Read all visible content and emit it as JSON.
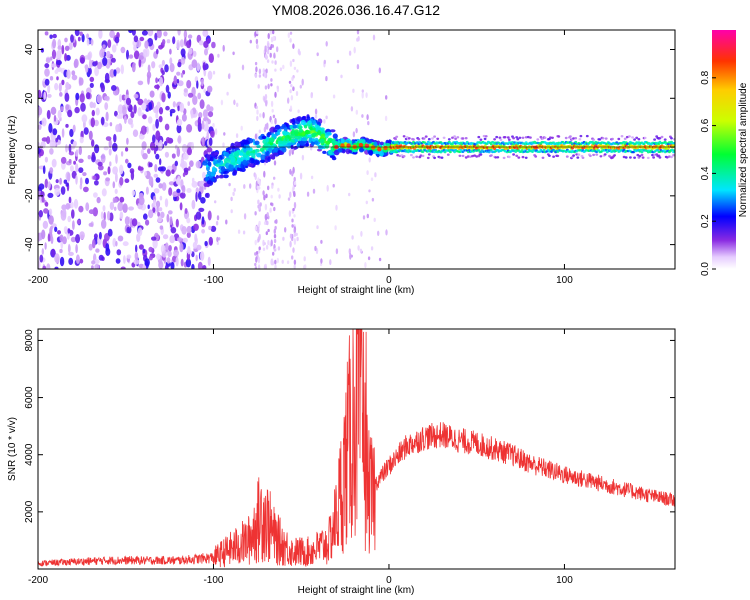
{
  "title": "YM08.2026.036.16.47.G12",
  "chart_data": [
    {
      "type": "heatmap",
      "title": "YM08.2026.036.16.47.G12",
      "xlabel": "Height of straight line (km)",
      "ylabel": "Frequency (Hz)",
      "xlim": [
        -200,
        163
      ],
      "ylim": [
        -50,
        48
      ],
      "x_ticks": [
        -200,
        -100,
        0,
        100
      ],
      "x_tick_labels": [
        "-200",
        "-100",
        "0",
        "100"
      ],
      "y_ticks": [
        -40,
        -20,
        0,
        20,
        40
      ],
      "y_tick_labels": [
        "-40",
        "-20",
        "0",
        "20",
        "40"
      ],
      "ridge": {
        "x": [
          -105,
          -95,
          -85,
          -75,
          -65,
          -55,
          -45,
          -40,
          -35,
          -30,
          -25,
          -20,
          -15,
          -10,
          -5,
          0,
          5,
          163
        ],
        "freq": [
          -10,
          -7,
          -4,
          -1,
          2,
          5,
          7,
          5,
          2,
          0,
          1,
          0,
          1,
          0,
          -1,
          0,
          0,
          0
        ]
      },
      "colorbar": {
        "label": "Normalized spectral amplitude",
        "range": [
          0,
          1
        ],
        "ticks": [
          0.0,
          0.2,
          0.4,
          0.6,
          0.8
        ],
        "tick_labels": [
          "0.0",
          "0.2",
          "0.4",
          "0.6",
          "0.8"
        ]
      }
    },
    {
      "type": "line",
      "xlabel": "Height of straight line (km)",
      "ylabel": "SNR (10 * v/v)",
      "xlim": [
        -200,
        163
      ],
      "ylim": [
        0,
        8400
      ],
      "x_ticks": [
        -200,
        -100,
        0,
        100
      ],
      "x_tick_labels": [
        "-200",
        "-100",
        "0",
        "100"
      ],
      "y_ticks": [
        2000,
        4000,
        6000,
        8000
      ],
      "y_tick_labels": [
        "2000",
        "4000",
        "6000",
        "8000"
      ],
      "series": [
        {
          "name": "SNR",
          "color": "#ee3333",
          "x": [
            -200,
            -160,
            -120,
            -100,
            -90,
            -80,
            -72,
            -65,
            -55,
            -45,
            -35,
            -30,
            -25,
            -20,
            -17,
            -14,
            -12,
            -10,
            -5,
            0,
            10,
            20,
            30,
            40,
            50,
            60,
            70,
            80,
            90,
            100,
            110,
            120,
            130,
            140,
            150,
            163
          ],
          "y": [
            200,
            300,
            300,
            400,
            700,
            1000,
            2000,
            1100,
            600,
            600,
            900,
            2000,
            4000,
            6000,
            7000,
            4500,
            3000,
            2800,
            3200,
            3600,
            4300,
            4600,
            4700,
            4500,
            4400,
            4200,
            4000,
            3700,
            3500,
            3300,
            3150,
            3000,
            2850,
            2700,
            2550,
            2400
          ]
        }
      ]
    }
  ]
}
